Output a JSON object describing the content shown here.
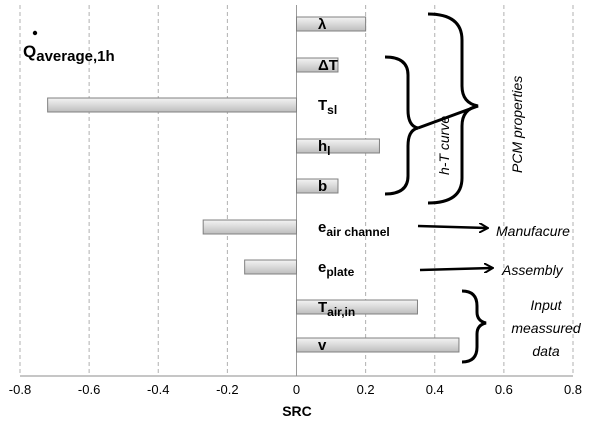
{
  "chart_data": {
    "type": "bar",
    "orientation": "horizontal",
    "title_main": "Q",
    "title_sub": "average,1h",
    "xlabel": "SRC",
    "xlim": [
      -0.8,
      0.8
    ],
    "xticks": [
      "-0.8",
      "-0.6",
      "-0.4",
      "-0.2",
      "0",
      "0.2",
      "0.4",
      "0.6",
      "0.8"
    ],
    "grid": "vertical dashed",
    "bar_color": "#d4d4d4",
    "categories": [
      {
        "main": "λ",
        "sub": ""
      },
      {
        "main": "ΔT",
        "sub": ""
      },
      {
        "main": "T",
        "sub": "sl"
      },
      {
        "main": "h",
        "sub": "l"
      },
      {
        "main": "b",
        "sub": ""
      },
      {
        "main": "e",
        "sub": "air channel"
      },
      {
        "main": "e",
        "sub": "plate"
      },
      {
        "main": "T",
        "sub": "air,in"
      },
      {
        "main": "v",
        "sub": ""
      }
    ],
    "values": [
      0.2,
      0.12,
      -0.72,
      0.24,
      0.12,
      -0.27,
      -0.15,
      0.35,
      0.47
    ],
    "annotations": {
      "htcurve": "h-T curve",
      "pcm": "PCM properties",
      "manufacture": "Manufacure",
      "assembly": "Assembly",
      "input_lines": [
        "Input",
        "meassured",
        "data"
      ]
    }
  }
}
